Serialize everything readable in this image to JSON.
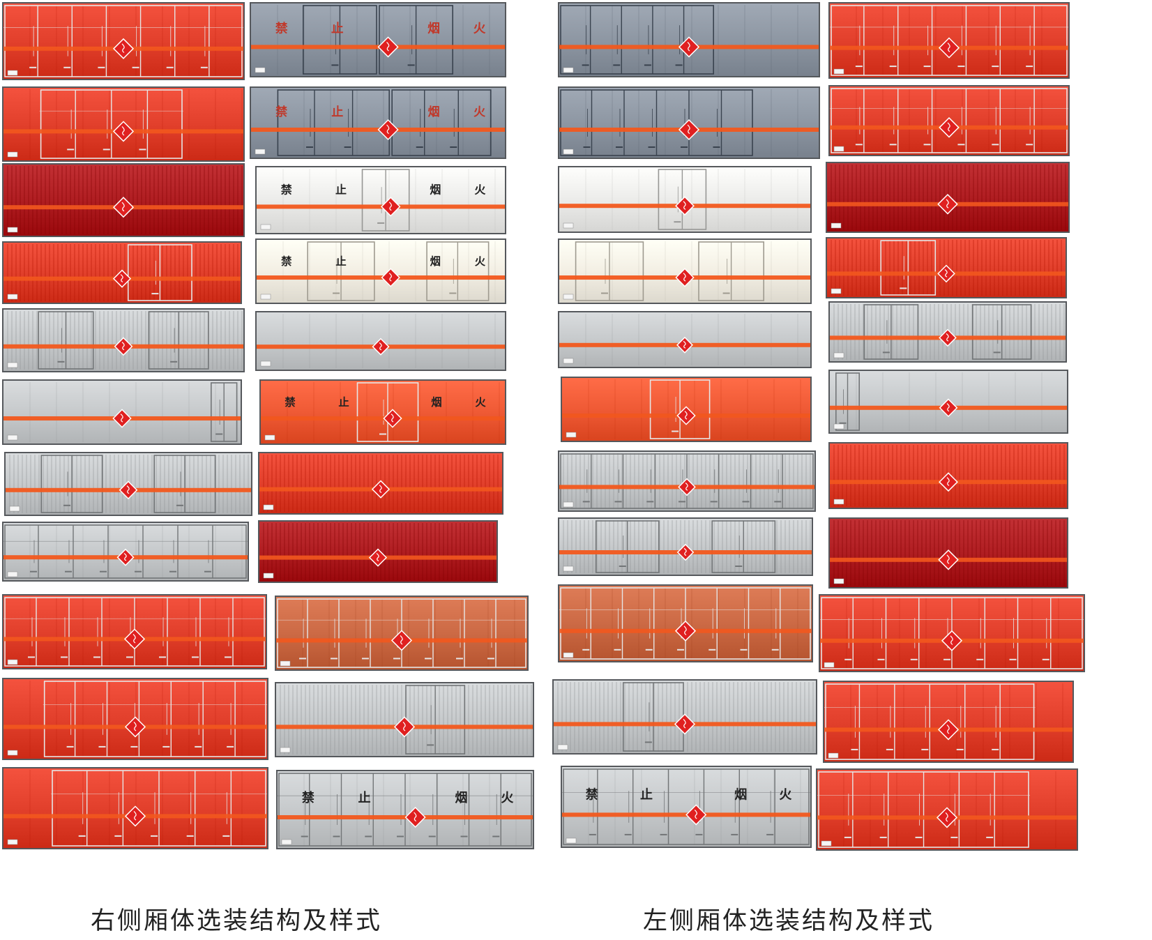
{
  "captions": {
    "right": "右侧厢体选装结构及样式",
    "left": "左侧厢体选装结构及样式"
  },
  "sign_text": [
    "禁",
    "止",
    "烟",
    "火"
  ],
  "colors": {
    "red": "#e2402c",
    "dark_red": "#b01e22",
    "gray": "#c7cacc",
    "blue_gray": "#8e97a3",
    "white": "#ececea",
    "cream": "#f3efe4",
    "orange_red": "#ef5a35",
    "copper": "#cc6a45",
    "stripe": "#f2581e",
    "diamond": "#e02020"
  },
  "panels": [
    {
      "id": "r1a",
      "color": "red",
      "style": "frame",
      "doors": [
        [
          0,
          1
        ]
      ],
      "signs": false
    },
    {
      "id": "r1b",
      "color": "blue_gray",
      "style": "doors",
      "doors": [
        [
          0.2,
          0.5
        ],
        [
          0.5,
          0.8
        ]
      ],
      "signs": true
    },
    {
      "id": "l1a",
      "color": "blue_gray",
      "style": "doors",
      "doors": [
        [
          0,
          0.6
        ]
      ],
      "signs": false
    },
    {
      "id": "l1b",
      "color": "red",
      "style": "frame",
      "doors": [
        [
          0,
          1
        ]
      ],
      "signs": false
    },
    {
      "id": "r2a",
      "color": "red",
      "style": "frame",
      "doors": [
        [
          0.15,
          0.75
        ]
      ],
      "signs": false
    },
    {
      "id": "r2b",
      "color": "blue_gray",
      "style": "doors",
      "doors": [
        [
          0.1,
          0.55
        ],
        [
          0.55,
          0.95
        ]
      ],
      "signs": true
    },
    {
      "id": "l2a",
      "color": "blue_gray",
      "style": "doors",
      "doors": [
        [
          0,
          0.75
        ]
      ],
      "signs": false
    },
    {
      "id": "l2b",
      "color": "red",
      "style": "frame",
      "doors": [
        [
          0,
          1
        ]
      ],
      "signs": false
    },
    {
      "id": "r3a",
      "color": "dark_red",
      "style": "corrugated",
      "doors": [],
      "signs": false
    },
    {
      "id": "r3b",
      "color": "white",
      "style": "plain",
      "doors": [
        [
          0.42,
          0.62
        ]
      ],
      "signs": true
    },
    {
      "id": "l3a",
      "color": "white",
      "style": "plain",
      "doors": [
        [
          0.39,
          0.59
        ]
      ],
      "signs": false
    },
    {
      "id": "l3b",
      "color": "dark_red",
      "style": "corrugated",
      "doors": [],
      "signs": false
    },
    {
      "id": "r4a",
      "color": "red",
      "style": "corrugated",
      "doors": [
        [
          0.52,
          0.8
        ]
      ],
      "signs": false
    },
    {
      "id": "r4b",
      "color": "cream",
      "style": "plain",
      "doors": [
        [
          0.2,
          0.48
        ],
        [
          0.68,
          0.94
        ]
      ],
      "signs": true
    },
    {
      "id": "l4a",
      "color": "cream",
      "style": "plain",
      "doors": [
        [
          0.06,
          0.34
        ],
        [
          0.55,
          0.82
        ]
      ],
      "signs": false
    },
    {
      "id": "l4b",
      "color": "red",
      "style": "corrugated",
      "doors": [
        [
          0.22,
          0.46
        ]
      ],
      "signs": false
    },
    {
      "id": "r5a",
      "color": "gray",
      "style": "corrugated",
      "doors": [
        [
          0.14,
          0.38
        ],
        [
          0.6,
          0.86
        ]
      ],
      "signs": false
    },
    {
      "id": "r5b",
      "color": "gray",
      "style": "plain",
      "doors": [],
      "signs": false
    },
    {
      "id": "l5a",
      "color": "gray",
      "style": "plain",
      "doors": [],
      "signs": false
    },
    {
      "id": "l5b",
      "color": "gray",
      "style": "corrugated",
      "doors": [
        [
          0.14,
          0.38
        ],
        [
          0.6,
          0.86
        ]
      ],
      "signs": false
    },
    {
      "id": "r6a",
      "color": "gray",
      "style": "plain",
      "doors": [
        [
          0.87,
          0.99
        ]
      ],
      "signs": false
    },
    {
      "id": "r6b",
      "color": "orange_red",
      "style": "plain",
      "doors": [
        [
          0.39,
          0.65
        ]
      ],
      "signs": true
    },
    {
      "id": "l6a",
      "color": "orange_red",
      "style": "plain",
      "doors": [
        [
          0.35,
          0.6
        ]
      ],
      "signs": false
    },
    {
      "id": "l6b",
      "color": "gray",
      "style": "plain",
      "doors": [
        [
          0.02,
          0.13
        ]
      ],
      "signs": false
    },
    {
      "id": "r7a",
      "color": "gray",
      "style": "corrugated",
      "doors": [
        [
          0.14,
          0.4
        ],
        [
          0.6,
          0.86
        ]
      ],
      "signs": false
    },
    {
      "id": "r7b",
      "color": "red",
      "style": "corrugated",
      "doors": [],
      "signs": false
    },
    {
      "id": "l7a",
      "color": "gray",
      "style": "corrugated",
      "doors": [
        [
          0,
          1
        ]
      ],
      "signs": false
    },
    {
      "id": "l7b",
      "color": "red",
      "style": "corrugated",
      "doors": [],
      "signs": false
    },
    {
      "id": "r8a",
      "color": "gray",
      "style": "frame",
      "doors": [
        [
          0,
          1
        ]
      ],
      "signs": false
    },
    {
      "id": "r8b",
      "color": "dark_red",
      "style": "corrugated",
      "doors": [],
      "signs": false
    },
    {
      "id": "l8a",
      "color": "gray",
      "style": "corrugated",
      "doors": [
        [
          0.14,
          0.4
        ],
        [
          0.6,
          0.86
        ]
      ],
      "signs": false
    },
    {
      "id": "l8b",
      "color": "dark_red",
      "style": "corrugated",
      "doors": [],
      "signs": false
    },
    {
      "id": "r9a",
      "color": "red",
      "style": "frame",
      "doors": [
        [
          0,
          1
        ]
      ],
      "signs": false
    },
    {
      "id": "r9b",
      "color": "copper",
      "style": "frame",
      "doors": [
        [
          0,
          1
        ]
      ],
      "signs": false
    },
    {
      "id": "l9a",
      "color": "copper",
      "style": "frame",
      "doors": [
        [
          0,
          1
        ]
      ],
      "signs": false
    },
    {
      "id": "l9b",
      "color": "red",
      "style": "frame",
      "doors": [
        [
          0,
          1
        ]
      ],
      "signs": false
    },
    {
      "id": "r10a",
      "color": "red",
      "style": "frame",
      "doors": [
        [
          0.15,
          1
        ]
      ],
      "signs": false
    },
    {
      "id": "r10b",
      "color": "gray",
      "style": "corrugated",
      "doors": [
        [
          0.5,
          0.74
        ]
      ],
      "signs": false
    },
    {
      "id": "l10a",
      "color": "gray",
      "style": "corrugated",
      "doors": [
        [
          0.26,
          0.5
        ]
      ],
      "signs": false
    },
    {
      "id": "l10b",
      "color": "red",
      "style": "frame",
      "doors": [
        [
          0,
          0.85
        ]
      ],
      "signs": false
    },
    {
      "id": "r11a",
      "color": "red",
      "style": "frame",
      "doors": [
        [
          0.18,
          1
        ]
      ],
      "signs": false
    },
    {
      "id": "r11b",
      "color": "gray",
      "style": "frame",
      "doors": [
        [
          0,
          1
        ]
      ],
      "signs": true
    },
    {
      "id": "l11a",
      "color": "gray",
      "style": "frame",
      "doors": [
        [
          0,
          1
        ]
      ],
      "signs": true
    },
    {
      "id": "l11b",
      "color": "red",
      "style": "frame",
      "doors": [
        [
          0,
          0.82
        ]
      ],
      "signs": false
    }
  ]
}
